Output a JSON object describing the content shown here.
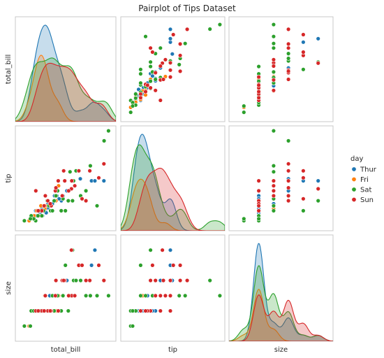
{
  "chart_data": {
    "type": "pairplot",
    "title": "Pairplot of Tips Dataset",
    "variables": [
      "total_bill",
      "tip",
      "size"
    ],
    "hue": "day",
    "legend": {
      "title": "day",
      "placement": "right",
      "entries": [
        "Thur",
        "Fri",
        "Sat",
        "Sun"
      ]
    },
    "colors": {
      "Thur": "#1f77b4",
      "Fri": "#ff7f0e",
      "Sat": "#2ca02c",
      "Sun": "#d62728"
    },
    "diagonal": "kde",
    "off_diagonal": "scatter",
    "grid": false,
    "ranges": {
      "total_bill": [
        -2,
        55
      ],
      "tip": [
        0,
        10.5
      ],
      "size": [
        0,
        7
      ]
    },
    "points": {
      "Thur": [
        [
          27.2,
          4,
          4
        ],
        [
          34.8,
          5.2,
          4
        ],
        [
          41.2,
          5,
          5
        ],
        [
          43.1,
          5,
          6
        ],
        [
          48.2,
          5,
          4
        ],
        [
          20.2,
          3.5,
          2
        ],
        [
          21.5,
          3.5,
          3
        ],
        [
          24.1,
          3,
          2
        ],
        [
          13.4,
          1.5,
          2
        ],
        [
          15.0,
          2,
          2
        ],
        [
          16.5,
          2.3,
          2
        ],
        [
          17.5,
          2.5,
          3
        ],
        [
          18.4,
          2.5,
          2
        ],
        [
          12.0,
          1.8,
          2
        ],
        [
          10.0,
          1.5,
          2
        ],
        [
          9.5,
          2,
          2
        ],
        [
          14.5,
          2.4,
          2
        ],
        [
          19.0,
          2.7,
          3
        ],
        [
          22.8,
          3.2,
          2
        ],
        [
          25.0,
          3.5,
          4
        ],
        [
          11.3,
          2,
          2
        ],
        [
          16.0,
          2.6,
          2
        ],
        [
          15.5,
          1.8,
          2
        ],
        [
          8.6,
          1.5,
          2
        ],
        [
          7.5,
          1.3,
          2
        ],
        [
          13.0,
          2.2,
          2
        ]
      ],
      "Fri": [
        [
          5.8,
          1,
          1
        ],
        [
          12.2,
          2,
          2
        ],
        [
          13.0,
          1.5,
          2
        ],
        [
          15.0,
          2.5,
          2
        ],
        [
          16.3,
          3,
          2
        ],
        [
          21.0,
          3,
          2
        ],
        [
          22.5,
          4.5,
          3
        ],
        [
          11.4,
          1.5,
          2
        ],
        [
          10.1,
          2,
          2
        ],
        [
          8.6,
          1.5,
          2
        ],
        [
          12.5,
          2.5,
          2
        ],
        [
          14.7,
          2.2,
          3
        ]
      ],
      "Sat": [
        [
          50.8,
          10,
          3
        ],
        [
          48.3,
          9,
          4
        ],
        [
          44.3,
          2.5,
          3
        ],
        [
          3.1,
          1,
          1
        ],
        [
          29.0,
          5.9,
          3
        ],
        [
          30.4,
          3,
          6
        ],
        [
          38.0,
          4,
          3
        ],
        [
          26.4,
          2,
          5
        ],
        [
          40.5,
          6.5,
          3
        ],
        [
          9.5,
          1,
          2
        ],
        [
          7.0,
          1.5,
          2
        ],
        [
          31.0,
          5,
          4
        ],
        [
          32.4,
          6,
          4
        ],
        [
          28.0,
          3,
          2
        ],
        [
          24.0,
          2,
          2
        ],
        [
          20.0,
          3,
          2
        ],
        [
          16.0,
          3,
          2
        ],
        [
          18.0,
          2,
          2
        ],
        [
          22.0,
          4,
          3
        ],
        [
          17.0,
          2.5,
          2
        ],
        [
          14.0,
          2,
          2
        ],
        [
          13.0,
          1.5,
          2
        ],
        [
          12.0,
          2,
          2
        ],
        [
          10.8,
          1.5,
          2
        ],
        [
          19.0,
          2,
          3
        ],
        [
          21.0,
          3.5,
          4
        ],
        [
          25.0,
          3.2,
          3
        ],
        [
          35.0,
          3.5,
          4
        ],
        [
          8.4,
          1.2,
          2
        ],
        [
          6.5,
          1.2,
          1
        ]
      ],
      "Sun": [
        [
          48.2,
          6.7,
          4
        ],
        [
          45.3,
          5.3,
          5
        ],
        [
          40.2,
          6,
          4
        ],
        [
          34.0,
          6,
          5
        ],
        [
          29.8,
          4.2,
          6
        ],
        [
          38.0,
          3,
          4
        ],
        [
          30.0,
          5,
          3
        ],
        [
          20.7,
          4,
          3
        ],
        [
          22.3,
          5,
          2
        ],
        [
          24.6,
          3.5,
          4
        ],
        [
          28.2,
          4,
          3
        ],
        [
          18.3,
          2.5,
          2
        ],
        [
          16.4,
          3,
          2
        ],
        [
          15.0,
          3.5,
          3
        ],
        [
          21.0,
          4.3,
          4
        ],
        [
          26.0,
          5,
          4
        ],
        [
          31.7,
          4.5,
          3
        ],
        [
          17.8,
          2.7,
          2
        ],
        [
          13.0,
          2,
          2
        ],
        [
          9.6,
          4,
          2
        ],
        [
          11.0,
          2,
          2
        ],
        [
          14.3,
          2.5,
          2
        ],
        [
          25.4,
          6,
          4
        ],
        [
          35.8,
          3.2,
          5
        ]
      ]
    }
  }
}
